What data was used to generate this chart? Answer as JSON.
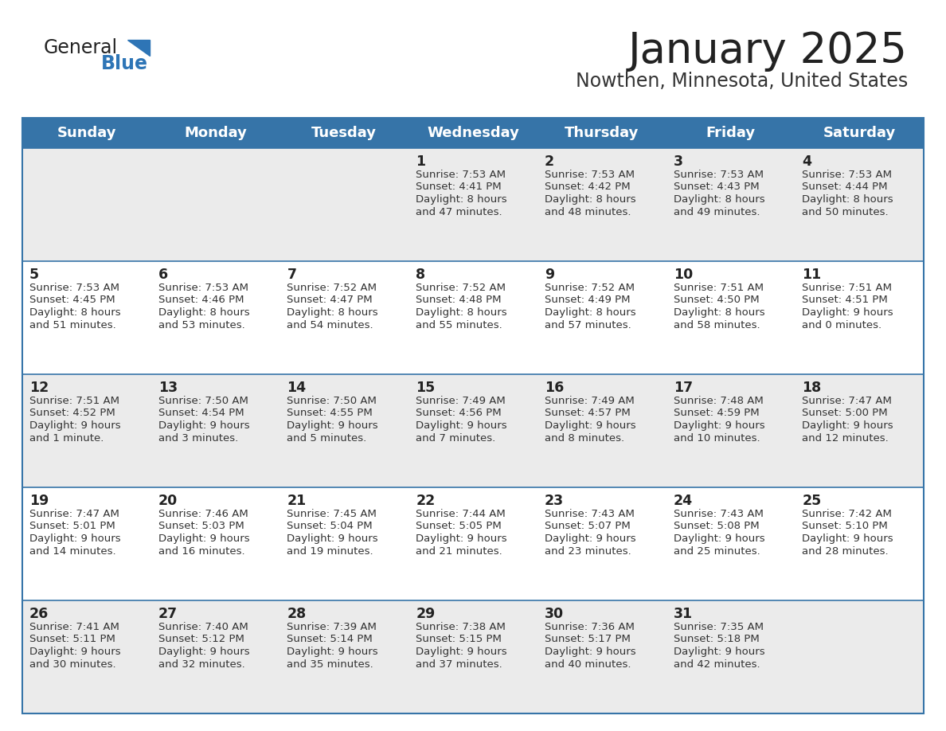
{
  "title": "January 2025",
  "subtitle": "Nowthen, Minnesota, United States",
  "header_bg": "#3674A8",
  "header_text_color": "#FFFFFF",
  "day_names": [
    "Sunday",
    "Monday",
    "Tuesday",
    "Wednesday",
    "Thursday",
    "Friday",
    "Saturday"
  ],
  "cell_bg_odd": "#EBEBEB",
  "cell_bg_even": "#FFFFFF",
  "cell_text_color": "#333333",
  "day_num_color": "#222222",
  "grid_color": "#3674A8",
  "logo_general_color": "#222222",
  "logo_blue_color": "#2E75B6",
  "logo_triangle_color": "#2E75B6",
  "title_color": "#222222",
  "subtitle_color": "#333333",
  "weeks": [
    [
      {
        "day": "",
        "sunrise": "",
        "sunset": "",
        "daylight_line1": "",
        "daylight_line2": ""
      },
      {
        "day": "",
        "sunrise": "",
        "sunset": "",
        "daylight_line1": "",
        "daylight_line2": ""
      },
      {
        "day": "",
        "sunrise": "",
        "sunset": "",
        "daylight_line1": "",
        "daylight_line2": ""
      },
      {
        "day": "1",
        "sunrise": "7:53 AM",
        "sunset": "4:41 PM",
        "daylight_line1": "Daylight: 8 hours",
        "daylight_line2": "and 47 minutes."
      },
      {
        "day": "2",
        "sunrise": "7:53 AM",
        "sunset": "4:42 PM",
        "daylight_line1": "Daylight: 8 hours",
        "daylight_line2": "and 48 minutes."
      },
      {
        "day": "3",
        "sunrise": "7:53 AM",
        "sunset": "4:43 PM",
        "daylight_line1": "Daylight: 8 hours",
        "daylight_line2": "and 49 minutes."
      },
      {
        "day": "4",
        "sunrise": "7:53 AM",
        "sunset": "4:44 PM",
        "daylight_line1": "Daylight: 8 hours",
        "daylight_line2": "and 50 minutes."
      }
    ],
    [
      {
        "day": "5",
        "sunrise": "7:53 AM",
        "sunset": "4:45 PM",
        "daylight_line1": "Daylight: 8 hours",
        "daylight_line2": "and 51 minutes."
      },
      {
        "day": "6",
        "sunrise": "7:53 AM",
        "sunset": "4:46 PM",
        "daylight_line1": "Daylight: 8 hours",
        "daylight_line2": "and 53 minutes."
      },
      {
        "day": "7",
        "sunrise": "7:52 AM",
        "sunset": "4:47 PM",
        "daylight_line1": "Daylight: 8 hours",
        "daylight_line2": "and 54 minutes."
      },
      {
        "day": "8",
        "sunrise": "7:52 AM",
        "sunset": "4:48 PM",
        "daylight_line1": "Daylight: 8 hours",
        "daylight_line2": "and 55 minutes."
      },
      {
        "day": "9",
        "sunrise": "7:52 AM",
        "sunset": "4:49 PM",
        "daylight_line1": "Daylight: 8 hours",
        "daylight_line2": "and 57 minutes."
      },
      {
        "day": "10",
        "sunrise": "7:51 AM",
        "sunset": "4:50 PM",
        "daylight_line1": "Daylight: 8 hours",
        "daylight_line2": "and 58 minutes."
      },
      {
        "day": "11",
        "sunrise": "7:51 AM",
        "sunset": "4:51 PM",
        "daylight_line1": "Daylight: 9 hours",
        "daylight_line2": "and 0 minutes."
      }
    ],
    [
      {
        "day": "12",
        "sunrise": "7:51 AM",
        "sunset": "4:52 PM",
        "daylight_line1": "Daylight: 9 hours",
        "daylight_line2": "and 1 minute."
      },
      {
        "day": "13",
        "sunrise": "7:50 AM",
        "sunset": "4:54 PM",
        "daylight_line1": "Daylight: 9 hours",
        "daylight_line2": "and 3 minutes."
      },
      {
        "day": "14",
        "sunrise": "7:50 AM",
        "sunset": "4:55 PM",
        "daylight_line1": "Daylight: 9 hours",
        "daylight_line2": "and 5 minutes."
      },
      {
        "day": "15",
        "sunrise": "7:49 AM",
        "sunset": "4:56 PM",
        "daylight_line1": "Daylight: 9 hours",
        "daylight_line2": "and 7 minutes."
      },
      {
        "day": "16",
        "sunrise": "7:49 AM",
        "sunset": "4:57 PM",
        "daylight_line1": "Daylight: 9 hours",
        "daylight_line2": "and 8 minutes."
      },
      {
        "day": "17",
        "sunrise": "7:48 AM",
        "sunset": "4:59 PM",
        "daylight_line1": "Daylight: 9 hours",
        "daylight_line2": "and 10 minutes."
      },
      {
        "day": "18",
        "sunrise": "7:47 AM",
        "sunset": "5:00 PM",
        "daylight_line1": "Daylight: 9 hours",
        "daylight_line2": "and 12 minutes."
      }
    ],
    [
      {
        "day": "19",
        "sunrise": "7:47 AM",
        "sunset": "5:01 PM",
        "daylight_line1": "Daylight: 9 hours",
        "daylight_line2": "and 14 minutes."
      },
      {
        "day": "20",
        "sunrise": "7:46 AM",
        "sunset": "5:03 PM",
        "daylight_line1": "Daylight: 9 hours",
        "daylight_line2": "and 16 minutes."
      },
      {
        "day": "21",
        "sunrise": "7:45 AM",
        "sunset": "5:04 PM",
        "daylight_line1": "Daylight: 9 hours",
        "daylight_line2": "and 19 minutes."
      },
      {
        "day": "22",
        "sunrise": "7:44 AM",
        "sunset": "5:05 PM",
        "daylight_line1": "Daylight: 9 hours",
        "daylight_line2": "and 21 minutes."
      },
      {
        "day": "23",
        "sunrise": "7:43 AM",
        "sunset": "5:07 PM",
        "daylight_line1": "Daylight: 9 hours",
        "daylight_line2": "and 23 minutes."
      },
      {
        "day": "24",
        "sunrise": "7:43 AM",
        "sunset": "5:08 PM",
        "daylight_line1": "Daylight: 9 hours",
        "daylight_line2": "and 25 minutes."
      },
      {
        "day": "25",
        "sunrise": "7:42 AM",
        "sunset": "5:10 PM",
        "daylight_line1": "Daylight: 9 hours",
        "daylight_line2": "and 28 minutes."
      }
    ],
    [
      {
        "day": "26",
        "sunrise": "7:41 AM",
        "sunset": "5:11 PM",
        "daylight_line1": "Daylight: 9 hours",
        "daylight_line2": "and 30 minutes."
      },
      {
        "day": "27",
        "sunrise": "7:40 AM",
        "sunset": "5:12 PM",
        "daylight_line1": "Daylight: 9 hours",
        "daylight_line2": "and 32 minutes."
      },
      {
        "day": "28",
        "sunrise": "7:39 AM",
        "sunset": "5:14 PM",
        "daylight_line1": "Daylight: 9 hours",
        "daylight_line2": "and 35 minutes."
      },
      {
        "day": "29",
        "sunrise": "7:38 AM",
        "sunset": "5:15 PM",
        "daylight_line1": "Daylight: 9 hours",
        "daylight_line2": "and 37 minutes."
      },
      {
        "day": "30",
        "sunrise": "7:36 AM",
        "sunset": "5:17 PM",
        "daylight_line1": "Daylight: 9 hours",
        "daylight_line2": "and 40 minutes."
      },
      {
        "day": "31",
        "sunrise": "7:35 AM",
        "sunset": "5:18 PM",
        "daylight_line1": "Daylight: 9 hours",
        "daylight_line2": "and 42 minutes."
      },
      {
        "day": "",
        "sunrise": "",
        "sunset": "",
        "daylight_line1": "",
        "daylight_line2": ""
      }
    ]
  ]
}
